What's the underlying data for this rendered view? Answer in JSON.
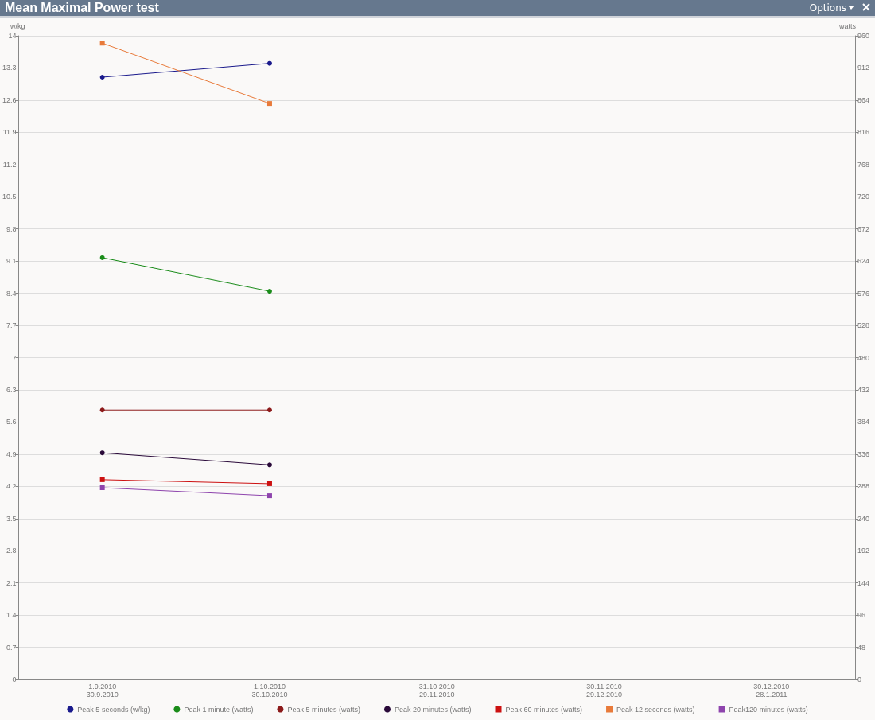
{
  "chart_data": {
    "type": "line",
    "title": "Mean Maximal Power test",
    "ylabel": "w/kg",
    "y2label": "watts",
    "annotations": [
      "Options"
    ],
    "categories": [
      "1.9.2010\n30.9.2010",
      "1.10.2010\n30.10.2010",
      "31.10.2010\n29.11.2010",
      "30.11.2010\n29.12.2010",
      "30.12.2010\n28.1.2011"
    ],
    "series": [
      {
        "name": "Peak 5 seconds (w/kg)",
        "color": "#1a1a8c",
        "marker": "circle",
        "values": [
          13.1,
          13.4,
          null,
          null,
          null
        ]
      },
      {
        "name": "Peak 1 minute (watts)",
        "color": "#1a8c1a",
        "marker": "circle",
        "axis": "y2",
        "values": [
          629,
          579,
          null,
          null,
          null
        ]
      },
      {
        "name": "Peak 5 minutes (watts)",
        "color": "#8c1a1a",
        "marker": "circle",
        "axis": "y2",
        "values": [
          402,
          402,
          null,
          null,
          null
        ]
      },
      {
        "name": "Peak 20 minutes (watts)",
        "color": "#2a0a3a",
        "marker": "circle",
        "axis": "y2",
        "values": [
          338,
          320,
          null,
          null,
          null
        ]
      },
      {
        "name": "Peak 60 minutes (watts)",
        "color": "#cc1111",
        "marker": "square",
        "axis": "y2",
        "values": [
          298,
          292,
          null,
          null,
          null
        ]
      },
      {
        "name": "Peak 12 seconds (watts)",
        "color": "#e87a3a",
        "marker": "square",
        "axis": "y2",
        "values": [
          949,
          859,
          null,
          null,
          null
        ]
      },
      {
        "name": "Peak120 minutes (watts)",
        "color": "#8e44ad",
        "marker": "square",
        "axis": "y2",
        "values": [
          286,
          274,
          null,
          null,
          null
        ]
      }
    ],
    "ylim": [
      0,
      14
    ],
    "yticks": [
      0,
      0.7,
      1.4,
      2.1,
      2.8,
      3.5,
      4.2,
      4.9,
      5.6,
      6.3,
      7,
      7.7,
      8.4,
      9.1,
      9.8,
      10.5,
      11.2,
      11.9,
      12.6,
      13.3,
      14
    ],
    "y2lim": [
      0,
      960
    ],
    "y2ticks": [
      0,
      48,
      96,
      144,
      192,
      240,
      288,
      336,
      384,
      432,
      480,
      528,
      576,
      624,
      672,
      720,
      768,
      816,
      864,
      912,
      960
    ],
    "grid": "y",
    "legend": "bottom",
    "line_style": "solid"
  }
}
